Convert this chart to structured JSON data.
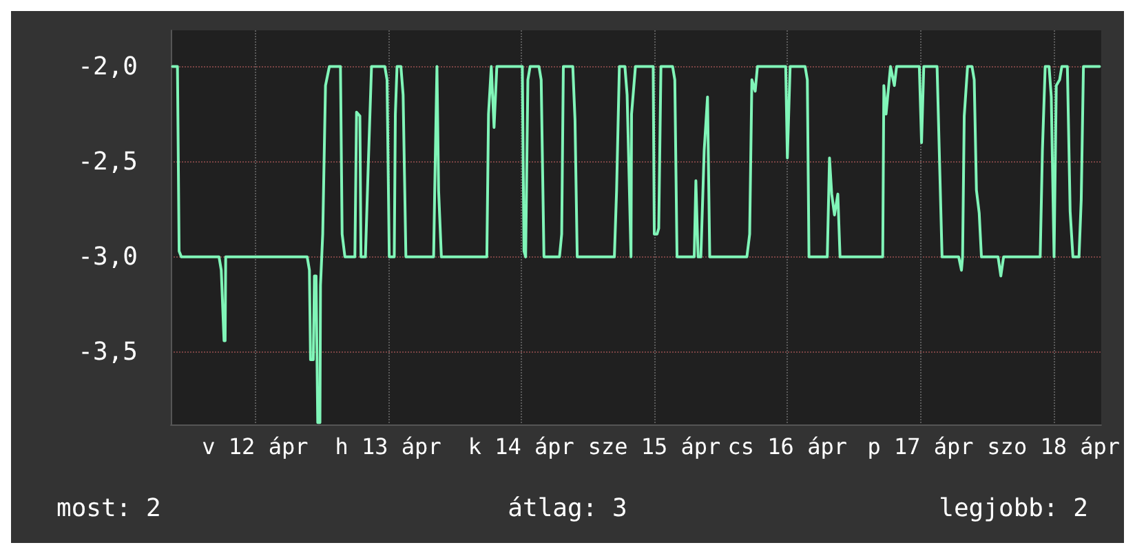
{
  "chart_data": {
    "type": "line",
    "x": [
      "--04-11T21:06",
      "--04-11T22:00",
      "--04-11T22:18",
      "--04-11T22:42",
      "--04-12T05:30",
      "--04-12T05:54",
      "--04-12T06:24",
      "--04-12T06:36",
      "--04-12T06:42",
      "--04-12T21:24",
      "--04-12T21:48",
      "--04-12T22:00",
      "--04-12T22:30",
      "--04-12T22:42",
      "--04-12T23:00",
      "--04-12T23:18",
      "--04-12T23:42",
      "--04-12T23:48",
      "--04-13T00:12",
      "--04-13T00:42",
      "--04-13T01:24",
      "--04-13T03:24",
      "--04-13T03:42",
      "--04-13T04:12",
      "--04-13T06:00",
      "--04-13T06:18",
      "--04-13T06:54",
      "--04-13T07:06",
      "--04-13T07:54",
      "--04-13T08:24",
      "--04-13T09:00",
      "--04-13T11:24",
      "--04-13T11:48",
      "--04-13T12:12",
      "--04-13T13:06",
      "--04-13T13:18",
      "--04-13T13:36",
      "--04-13T14:18",
      "--04-13T14:42",
      "--04-13T15:12",
      "--04-13T20:12",
      "--04-13T20:24",
      "--04-13T20:48",
      "--04-13T21:06",
      "--04-13T21:36",
      "--04-14T05:48",
      "--04-14T06:06",
      "--04-14T06:36",
      "--04-14T07:06",
      "--04-14T07:36",
      "--04-14T12:12",
      "--04-14T12:30",
      "--04-14T12:48",
      "--04-14T13:12",
      "--04-14T13:36",
      "--04-14T15:12",
      "--04-14T15:36",
      "--04-14T16:06",
      "--04-14T18:54",
      "--04-14T19:18",
      "--04-14T19:36",
      "--04-14T21:18",
      "--04-14T21:42",
      "--04-14T22:06",
      "--04-15T04:48",
      "--04-15T05:12",
      "--04-15T05:42",
      "--04-15T06:42",
      "--04-15T07:06",
      "--04-15T07:48",
      "--04-15T07:54",
      "--04-15T08:36",
      "--04-15T11:48",
      "--04-15T12:00",
      "--04-15T12:30",
      "--04-15T12:48",
      "--04-15T13:12",
      "--04-15T15:18",
      "--04-15T15:42",
      "--04-15T16:06",
      "--04-15T19:12",
      "--04-15T19:30",
      "--04-15T19:54",
      "--04-15T20:24",
      "--04-15T21:00",
      "--04-15T21:36",
      "--04-15T22:00",
      "--04-16T04:42",
      "--04-16T05:12",
      "--04-16T05:36",
      "--04-16T06:12",
      "--04-16T06:36",
      "--04-16T11:42",
      "--04-16T12:00",
      "--04-16T12:30",
      "--04-16T15:12",
      "--04-16T15:36",
      "--04-16T15:54",
      "--04-16T19:12",
      "--04-16T19:36",
      "--04-16T20:00",
      "--04-16T20:30",
      "--04-16T21:06",
      "--04-16T21:30",
      "--04-17T05:12",
      "--04-17T05:24",
      "--04-17T05:48",
      "--04-17T06:36",
      "--04-17T07:18",
      "--04-17T07:42",
      "--04-17T11:48",
      "--04-17T12:12",
      "--04-17T12:36",
      "--04-17T15:00",
      "--04-17T15:54",
      "--04-17T18:54",
      "--04-17T19:24",
      "--04-17T19:36",
      "--04-17T19:54",
      "--04-17T20:30",
      "--04-17T21:18",
      "--04-17T21:42",
      "--04-17T22:06",
      "--04-17T22:36",
      "--04-17T23:00",
      "--04-18T02:00",
      "--04-18T02:30",
      "--04-18T03:00",
      "--04-18T09:36",
      "--04-18T10:00",
      "--04-18T10:30",
      "--04-18T11:12",
      "--04-18T11:36",
      "--04-18T12:06",
      "--04-18T12:30",
      "--04-18T13:06",
      "--04-18T13:30",
      "--04-18T14:30",
      "--04-18T15:00",
      "--04-18T15:30",
      "--04-18T16:36",
      "--04-18T17:00",
      "--04-18T17:24",
      "--04-18T20:18"
    ],
    "series": [
      {
        "color": "#80f5b8",
        "values": [
          -2.0,
          -2.0,
          -2.97,
          -3.0,
          -3.0,
          -3.07,
          -3.44,
          -3.44,
          -3.0,
          -3.0,
          -3.07,
          -3.54,
          -3.54,
          -3.1,
          -3.1,
          -3.87,
          -3.87,
          -3.15,
          -2.88,
          -2.1,
          -2.0,
          -2.0,
          -2.88,
          -3.0,
          -3.0,
          -2.24,
          -2.26,
          -3.0,
          -3.0,
          -2.53,
          -2.0,
          -2.0,
          -2.07,
          -3.0,
          -3.0,
          -2.25,
          -2.0,
          -2.0,
          -2.15,
          -3.0,
          -3.0,
          -2.65,
          -2.0,
          -2.65,
          -3.0,
          -3.0,
          -2.25,
          -2.0,
          -2.32,
          -2.0,
          -2.0,
          -2.97,
          -3.0,
          -2.07,
          -2.0,
          -2.0,
          -2.07,
          -3.0,
          -3.0,
          -2.88,
          -2.0,
          -2.0,
          -2.28,
          -3.0,
          -3.0,
          -2.65,
          -2.0,
          -2.0,
          -2.15,
          -3.0,
          -2.25,
          -2.0,
          -2.0,
          -2.88,
          -2.88,
          -2.85,
          -2.0,
          -2.0,
          -2.07,
          -3.0,
          -3.0,
          -2.6,
          -3.0,
          -3.0,
          -2.44,
          -2.16,
          -3.0,
          -3.0,
          -2.88,
          -2.07,
          -2.13,
          -2.0,
          -2.0,
          -2.48,
          -2.0,
          -2.0,
          -2.07,
          -3.0,
          -3.0,
          -2.48,
          -2.67,
          -2.78,
          -2.67,
          -3.0,
          -3.0,
          -2.1,
          -2.25,
          -2.0,
          -2.1,
          -2.0,
          -2.0,
          -2.4,
          -2.0,
          -2.0,
          -3.0,
          -3.0,
          -3.07,
          -3.0,
          -2.26,
          -2.0,
          -2.0,
          -2.07,
          -2.65,
          -2.77,
          -3.0,
          -3.0,
          -3.1,
          -3.0,
          -3.0,
          -2.44,
          -2.0,
          -2.0,
          -2.16,
          -3.0,
          -2.1,
          -2.07,
          -2.0,
          -2.0,
          -2.76,
          -3.0,
          -3.0,
          -2.7,
          -2.0,
          -2.0
        ]
      }
    ],
    "xlim": [
      "--04-11T20:48",
      "--04-18T20:36"
    ],
    "xticks": [
      {
        "value": "--04-12T12:00",
        "label": "v 12 ápr"
      },
      {
        "value": "--04-13T12:00",
        "label": "h 13 ápr"
      },
      {
        "value": "--04-14T12:00",
        "label": "k 14 ápr"
      },
      {
        "value": "--04-15T12:00",
        "label": "sze 15 ápr"
      },
      {
        "value": "--04-16T12:00",
        "label": "cs 16 ápr"
      },
      {
        "value": "--04-17T12:00",
        "label": "p 17 ápr"
      },
      {
        "value": "--04-18T12:00",
        "label": "szo 18 ápr"
      }
    ],
    "ylim": [
      -3.88,
      -1.81
    ],
    "yticks": [
      {
        "value": -3.5,
        "label": "-3,5"
      },
      {
        "value": -3,
        "label": "-3,0"
      },
      {
        "value": -2.5,
        "label": "-2,5"
      },
      {
        "value": -2,
        "label": "-2,0"
      }
    ],
    "grid": true,
    "marker": "none",
    "line_style": "solid",
    "annotations": [
      "most: 2",
      "átlag: 3",
      "legjobb: 2"
    ]
  }
}
